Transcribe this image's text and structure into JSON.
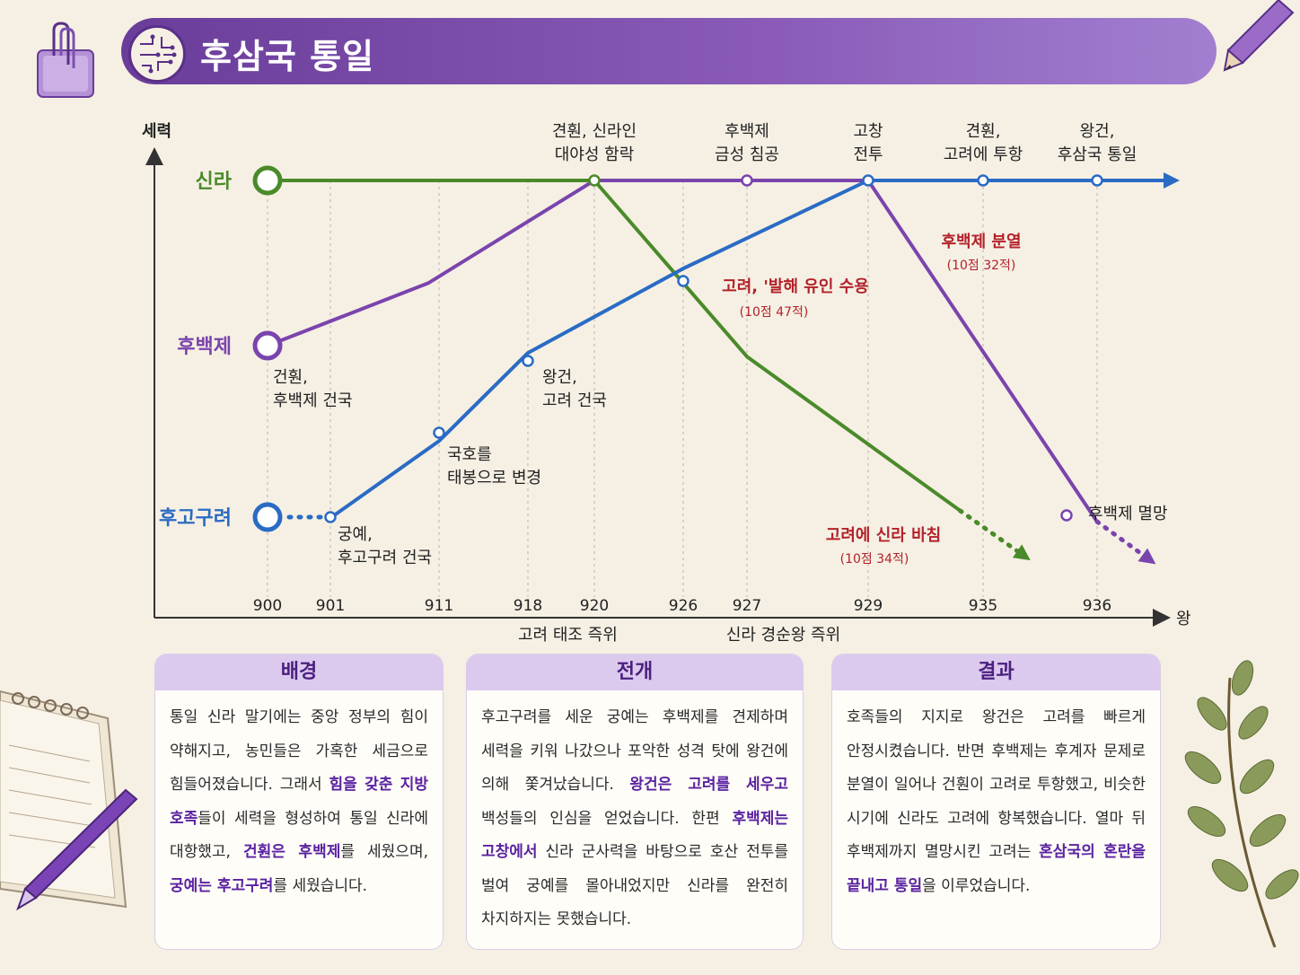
{
  "title": "후삼국 통일",
  "axis": {
    "y_label": "세력",
    "x_label": "왕"
  },
  "chart_data": {
    "type": "line",
    "x_ticks": [
      900,
      901,
      911,
      918,
      920,
      926,
      927,
      929,
      935,
      936
    ],
    "x_tick_labels": [
      "900",
      "901",
      "911",
      "918",
      "920",
      "926",
      "927",
      "929",
      "935",
      "936"
    ],
    "x_axis_notes": [
      {
        "x": 919.2,
        "text": "고려 태조 즉위"
      },
      {
        "x": 927.6,
        "text": "신라 경순왕 즉위"
      }
    ],
    "y_min": 0,
    "y_max": 10,
    "series": [
      {
        "name": "신라",
        "color": "#4a8a2a",
        "points": [
          [
            900,
            10
          ],
          [
            920,
            10
          ],
          [
            927,
            5.2
          ],
          [
            933.8,
            1.0
          ]
        ],
        "dotted": [
          [
            933.8,
            1.0
          ],
          [
            935.3,
            -0.1
          ]
        ],
        "arrow": "down"
      },
      {
        "name": "후백제",
        "color": "#7a44ad",
        "points": [
          [
            900,
            5.1
          ],
          [
            910,
            7.2
          ],
          [
            920,
            10
          ],
          [
            929,
            10
          ],
          [
            936,
            0.7
          ]
        ],
        "dotted": [
          [
            936,
            0.7
          ],
          [
            936.4,
            -0.2
          ]
        ],
        "arrow": "down"
      },
      {
        "name": "후고구려",
        "color": "#2a6bc4",
        "points": [
          [
            901,
            0.8
          ],
          [
            911,
            2.9
          ],
          [
            918,
            5.3
          ],
          [
            926,
            7.6
          ],
          [
            929,
            10
          ],
          [
            936.5,
            10
          ]
        ],
        "dotted": [
          [
            900,
            0.8
          ],
          [
            901,
            0.8
          ]
        ],
        "arrow": "right"
      }
    ],
    "top_events": [
      {
        "x": 920,
        "lines": [
          "견훤, 신라인",
          "대야성 함락"
        ]
      },
      {
        "x": 927,
        "lines": [
          "후백제",
          "금성 침공"
        ]
      },
      {
        "x": 929,
        "lines": [
          "고창",
          "전투"
        ]
      },
      {
        "x": 935,
        "lines": [
          "견훤,",
          "고려에 투항"
        ]
      },
      {
        "x": 936,
        "lines": [
          "왕건,",
          "후삼국 통일"
        ]
      }
    ],
    "events": [
      {
        "lines": [
          "건훤,",
          "후백제 건국"
        ]
      },
      {
        "lines": [
          "궁예,",
          "후고구려 건국"
        ]
      },
      {
        "lines": [
          "국호를",
          "태봉으로 변경"
        ]
      },
      {
        "lines": [
          "왕건,",
          "고려 건국"
        ]
      },
      {
        "lines": [
          "후백제 멸망"
        ]
      }
    ],
    "red_notes": [
      {
        "text": "고려, '발해 유인 수용",
        "sub": "(10점 47적)"
      },
      {
        "text": "후백제 분열",
        "sub": "(10점 32적)"
      },
      {
        "text": "고려에 신라 바침",
        "sub": "(10점 34적)"
      }
    ]
  },
  "cards": [
    {
      "title": "배경",
      "segments": [
        [
          "통일 신라 말기에는 중앙 정부의 힘이 약해지고, 농민들은 가혹한 세금으로 힘들어졌습니다. 그래서 ",
          false
        ],
        [
          "힘을 갖춘 지방 호족",
          true
        ],
        [
          "들이 세력을 형성하여 통일 신라에 대항했고, ",
          false
        ],
        [
          "건훤은 후백제",
          true
        ],
        [
          "를 세웠으며, ",
          false
        ],
        [
          "궁예는 후고구려",
          true
        ],
        [
          "를 세웠습니다.",
          false
        ]
      ]
    },
    {
      "title": "전개",
      "segments": [
        [
          "후고구려를 세운 궁예는 후백제를 견제하며 세력을 키워 나갔으나 포악한 성격 탓에 왕건에 의해 쫓겨났습니다. ",
          false
        ],
        [
          "왕건은 고려를 세우고",
          true
        ],
        [
          " 백성들의 인심을 얻었습니다. 한편 ",
          false
        ],
        [
          "후백제는 고창에서",
          true
        ],
        [
          " 신라 군사력을 바탕으로 호산 전투를 벌여 궁예를 몰아내었지만 신라를 완전히 차지하지는 못했습니다.",
          false
        ]
      ]
    },
    {
      "title": "결과",
      "segments": [
        [
          "호족들의 지지로 왕건은 고려를 빠르게 안정시켰습니다. 반면 후백제는 후계자 문제로 분열이 일어나 건훤이 고려로 투항했고, 비슷한 시기에 신라도 고려에 항복했습니다. 열마 뒤 후백제까지 멸망시킨 고려는 ",
          false
        ],
        [
          "혼삼국의 혼란을 끝내고 통일",
          true
        ],
        [
          "을 이루었습니다.",
          false
        ]
      ]
    }
  ]
}
